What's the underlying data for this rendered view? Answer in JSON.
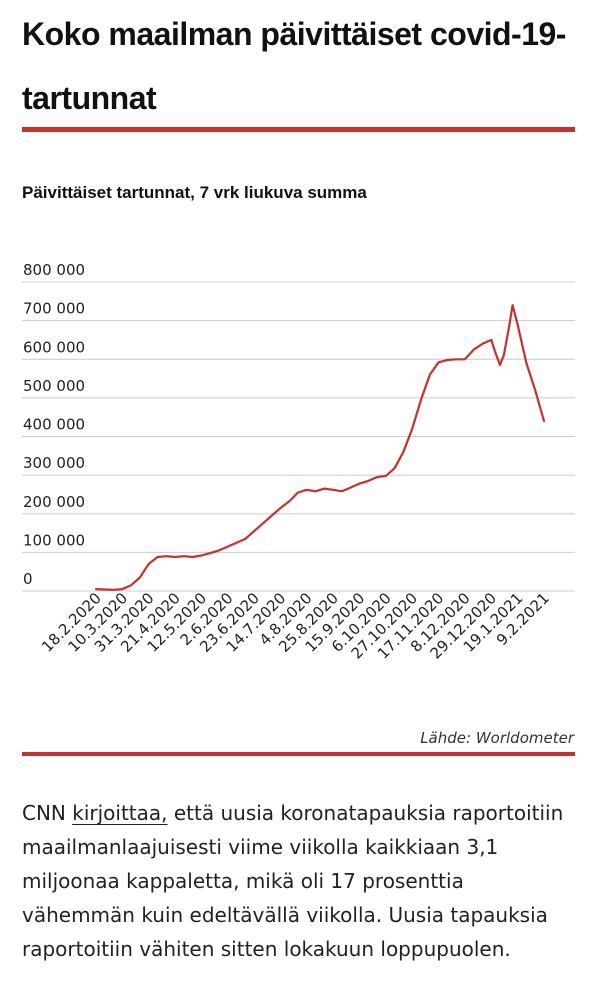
{
  "article": {
    "title": "Koko maailman päivittäiset covid-19-tartunnat",
    "body_before_link": "CNN ",
    "link_text": "kirjoittaa,",
    "body_after_link": " että uusia koronatapauksia raportoitiin maailmanlaajuisesti viime viikolla kaikkiaan 3,1 miljoonaa kappaletta, mikä oli 17 prosenttia vähemmän kuin edeltävällä viikolla. Uusia tapauksia raportoitiin vähiten sitten lokakuun loppupuolen."
  },
  "colors": {
    "accent": "#c8302c",
    "line": "#c8302c",
    "grid": "#cccccc"
  },
  "chart_data": {
    "type": "line",
    "title": "Päivittäiset tartunnat, 7 vrk liukuva summa",
    "source": "Lähde: Worldometer",
    "xlabel": "",
    "ylabel": "",
    "ylim": [
      0,
      800000
    ],
    "grid": true,
    "yticks": [
      {
        "value": 0,
        "label": "0"
      },
      {
        "value": 100000,
        "label": "100 000"
      },
      {
        "value": 200000,
        "label": "200 000"
      },
      {
        "value": 300000,
        "label": "300 000"
      },
      {
        "value": 400000,
        "label": "400 000"
      },
      {
        "value": 500000,
        "label": "500 000"
      },
      {
        "value": 600000,
        "label": "600 000"
      },
      {
        "value": 700000,
        "label": "700 000"
      },
      {
        "value": 800000,
        "label": "800 000"
      }
    ],
    "xticks": [
      "18.2.2020",
      "10.3.2020",
      "31.3.2020",
      "21.4.2020",
      "12.5.2020",
      "2.6.2020",
      "23.6.2020",
      "14.7.2020",
      "4.8.2020",
      "25.8.2020",
      "15.9.2020",
      "6.10.2020",
      "27.10.2020",
      "17.11.2020",
      "8.12.2020",
      "29.12.2020",
      "19.1.2021",
      "9.2.2021"
    ],
    "series": [
      {
        "values": [
          [
            "2020-02-18",
            5000
          ],
          [
            "2020-02-25",
            4000
          ],
          [
            "2020-03-03",
            3000
          ],
          [
            "2020-03-10",
            5000
          ],
          [
            "2020-03-17",
            15000
          ],
          [
            "2020-03-24",
            35000
          ],
          [
            "2020-03-31",
            70000
          ],
          [
            "2020-04-07",
            88000
          ],
          [
            "2020-04-14",
            90000
          ],
          [
            "2020-04-21",
            88000
          ],
          [
            "2020-04-28",
            90000
          ],
          [
            "2020-05-05",
            88000
          ],
          [
            "2020-05-12",
            92000
          ],
          [
            "2020-05-19",
            98000
          ],
          [
            "2020-05-26",
            105000
          ],
          [
            "2020-06-02",
            115000
          ],
          [
            "2020-06-09",
            125000
          ],
          [
            "2020-06-16",
            135000
          ],
          [
            "2020-06-23",
            155000
          ],
          [
            "2020-06-30",
            175000
          ],
          [
            "2020-07-07",
            195000
          ],
          [
            "2020-07-14",
            215000
          ],
          [
            "2020-07-21",
            232000
          ],
          [
            "2020-07-28",
            255000
          ],
          [
            "2020-08-04",
            262000
          ],
          [
            "2020-08-11",
            258000
          ],
          [
            "2020-08-18",
            265000
          ],
          [
            "2020-08-25",
            262000
          ],
          [
            "2020-09-01",
            258000
          ],
          [
            "2020-09-08",
            268000
          ],
          [
            "2020-09-15",
            278000
          ],
          [
            "2020-09-22",
            285000
          ],
          [
            "2020-09-29",
            295000
          ],
          [
            "2020-10-06",
            298000
          ],
          [
            "2020-10-13",
            318000
          ],
          [
            "2020-10-20",
            360000
          ],
          [
            "2020-10-27",
            420000
          ],
          [
            "2020-11-03",
            495000
          ],
          [
            "2020-11-10",
            560000
          ],
          [
            "2020-11-17",
            592000
          ],
          [
            "2020-11-24",
            598000
          ],
          [
            "2020-12-01",
            600000
          ],
          [
            "2020-12-08",
            600000
          ],
          [
            "2020-12-15",
            625000
          ],
          [
            "2020-12-22",
            640000
          ],
          [
            "2020-12-29",
            650000
          ],
          [
            "2021-01-01",
            620000
          ],
          [
            "2021-01-05",
            585000
          ],
          [
            "2021-01-08",
            610000
          ],
          [
            "2021-01-12",
            680000
          ],
          [
            "2021-01-15",
            740000
          ],
          [
            "2021-01-19",
            690000
          ],
          [
            "2021-01-26",
            590000
          ],
          [
            "2021-02-02",
            520000
          ],
          [
            "2021-02-09",
            440000
          ]
        ]
      }
    ]
  }
}
